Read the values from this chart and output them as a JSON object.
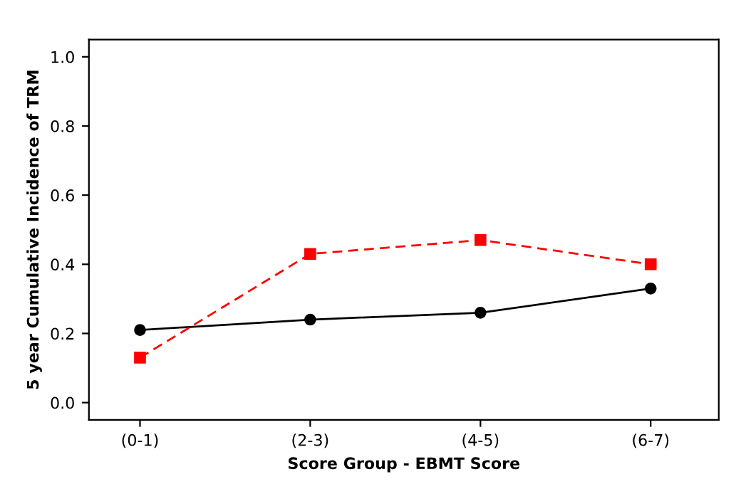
{
  "chart_data": {
    "type": "line",
    "xlabel": "Score Group - EBMT Score",
    "ylabel": "5 year Cumulative Incidence of TRM",
    "categories": [
      "(0-1)",
      "(2-3)",
      "(4-5)",
      "(6-7)"
    ],
    "series": [
      {
        "color": "#000000",
        "values": [
          0.21,
          0.24,
          0.26,
          0.33
        ],
        "marker": "circle",
        "line_style": "solid"
      },
      {
        "color": "#ff0000",
        "values": [
          0.13,
          0.43,
          0.47,
          0.4
        ],
        "marker": "square",
        "line_style": "dashed"
      }
    ],
    "ylim": [
      -0.05,
      1.05
    ],
    "yticks": [
      {
        "value": 0,
        "label": "0.0"
      },
      {
        "value": 0.2,
        "label": "0.2"
      },
      {
        "value": 0.4,
        "label": "0.4"
      },
      {
        "value": 0.6,
        "label": "0.6"
      },
      {
        "value": 0.8,
        "label": "0.8"
      },
      {
        "value": 1,
        "label": "1.0"
      }
    ],
    "grid": false,
    "legend": false
  }
}
